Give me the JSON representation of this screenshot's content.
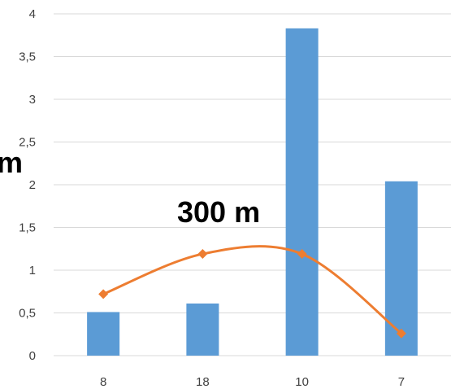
{
  "chart_data": {
    "type": "bar",
    "categories": [
      "8",
      "18",
      "10",
      "7"
    ],
    "ylim": [
      0,
      4
    ],
    "y_ticks": [
      "0",
      "0,5",
      "1",
      "1,5",
      "2",
      "2,5",
      "3",
      "3,5",
      "4"
    ],
    "grid": true,
    "series": [
      {
        "type": "bar",
        "values": [
          0.51,
          0.61,
          3.83,
          2.04
        ],
        "color": "#5b9bd5"
      },
      {
        "type": "line",
        "smooth": true,
        "marker": "diamond",
        "values": [
          0.72,
          1.19,
          1.19,
          0.26
        ],
        "color": "#ed7d31"
      }
    ],
    "annotations": [
      "300 m",
      "m"
    ]
  }
}
